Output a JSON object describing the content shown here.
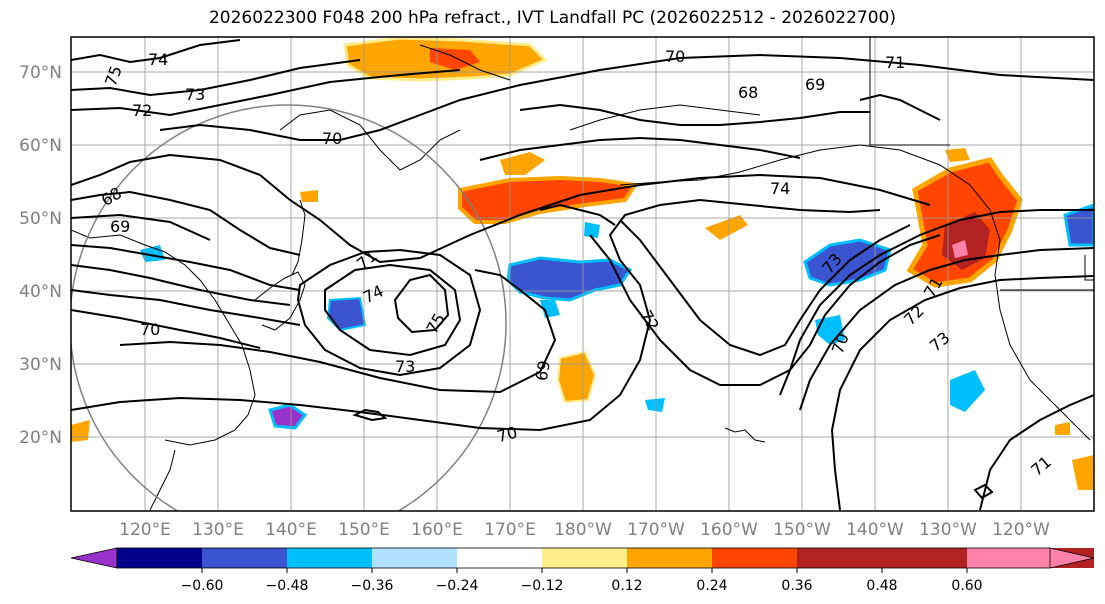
{
  "title": "2026022300 F048 200 hPa refract., IVT Landfall PC (2026022512 - 2026022700)",
  "lat_labels": [
    "70°N",
    "60°N",
    "50°N",
    "40°N",
    "30°N",
    "20°N"
  ],
  "lon_labels": [
    "120°E",
    "130°E",
    "140°E",
    "150°E",
    "160°E",
    "170°E",
    "180°W",
    "170°W",
    "160°W",
    "150°W",
    "140°W",
    "130°W",
    "120°W"
  ],
  "contour_labels": [
    "74",
    "75",
    "73",
    "72",
    "70",
    "68",
    "69",
    "70",
    "71",
    "68",
    "69",
    "74",
    "71",
    "74",
    "75",
    "73",
    "70",
    "69",
    "70",
    "72",
    "73",
    "71",
    "72",
    "73",
    "70",
    "71"
  ],
  "colorbar": {
    "ticks": [
      "−0.60",
      "−0.48",
      "−0.36",
      "−0.24",
      "−0.12",
      "0.12",
      "0.24",
      "0.36",
      "0.48",
      "0.60"
    ],
    "colors": [
      "#9932cc",
      "#00008b",
      "#3a55cf",
      "#00bfff",
      "#b0e2ff",
      "#ffffff",
      "#ffec8b",
      "#ffa500",
      "#ff4500",
      "#b22222",
      "#ff82ab"
    ]
  }
}
